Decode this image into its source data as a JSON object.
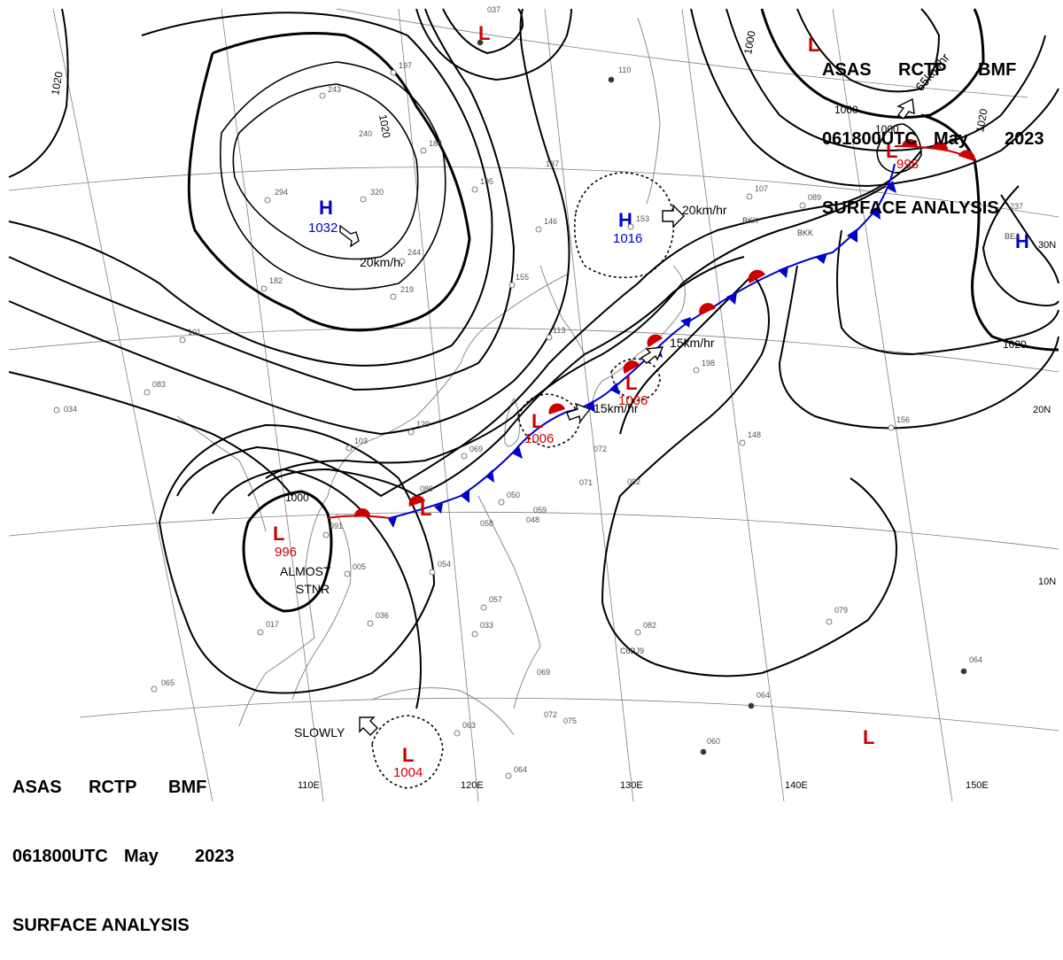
{
  "header_top": {
    "line1": [
      "ASAS",
      "RCTP",
      "BMF"
    ],
    "line2": [
      "061800UTC",
      "May",
      "2023"
    ],
    "line3": "SURFACE ANALYSIS"
  },
  "header_bottom": {
    "line1": [
      "ASAS",
      "RCTP",
      "BMF"
    ],
    "line2": [
      "061800UTC",
      "May",
      "2023"
    ],
    "line3": "SURFACE ANALYSIS"
  },
  "pressure_centers": [
    {
      "type": "H",
      "value": "1032",
      "color": "#0000cc"
    },
    {
      "type": "H",
      "value": "1016",
      "color": "#0000cc"
    },
    {
      "type": "H",
      "value": "",
      "color": "#0000cc"
    },
    {
      "type": "L",
      "value": "996",
      "color": "#cc0000"
    },
    {
      "type": "L",
      "value": "1004",
      "color": "#cc0000"
    },
    {
      "type": "L",
      "value": "1006",
      "color": "#cc0000"
    },
    {
      "type": "L",
      "value": "1006",
      "color": "#cc0000"
    },
    {
      "type": "L",
      "value": "998",
      "color": "#cc0000"
    },
    {
      "type": "L",
      "value": "",
      "color": "#cc0000"
    },
    {
      "type": "L",
      "value": "",
      "color": "#cc0000"
    },
    {
      "type": "L",
      "value": "",
      "color": "#cc0000"
    },
    {
      "type": "L",
      "value": "",
      "color": "#cc0000"
    }
  ],
  "motion_labels": [
    "20km/hr",
    "20km/hr",
    "15km/hr",
    "15km/hr",
    "65km/hr",
    "SLOWLY"
  ],
  "system_note": [
    "ALMOST",
    "STNR"
  ],
  "isobar_labels": [
    "1020",
    "1020",
    "1020",
    "1020",
    "1000",
    "1000",
    "1000",
    "1000"
  ],
  "latitude_labels": [
    "30N",
    "20N",
    "10N"
  ],
  "longitude_labels": [
    "110E",
    "120E",
    "130E",
    "140E",
    "150E"
  ],
  "station_labels": [
    "BKK",
    "BKK",
    "C6BJ9",
    "BEJ"
  ],
  "station_values": [
    "294",
    "320",
    "244",
    "219",
    "240",
    "182",
    "101",
    "083",
    "034",
    "195",
    "137",
    "146",
    "155",
    "113",
    "103",
    "129",
    "069",
    "089",
    "050",
    "059",
    "048",
    "058",
    "091",
    "005",
    "036",
    "017",
    "054",
    "057",
    "033",
    "065",
    "063",
    "064",
    "069",
    "072",
    "075",
    "071",
    "092",
    "072",
    "037",
    "153",
    "107",
    "089",
    "237",
    "198",
    "148",
    "156",
    "082",
    "079",
    "064",
    "064",
    "060",
    "110",
    "197",
    "243",
    "188"
  ],
  "colors": {
    "isobar": "#000000",
    "cold_front": "#0000cc",
    "warm_front": "#cc0000",
    "grid": "#7f7f7f",
    "coast": "#8a8a8a"
  }
}
